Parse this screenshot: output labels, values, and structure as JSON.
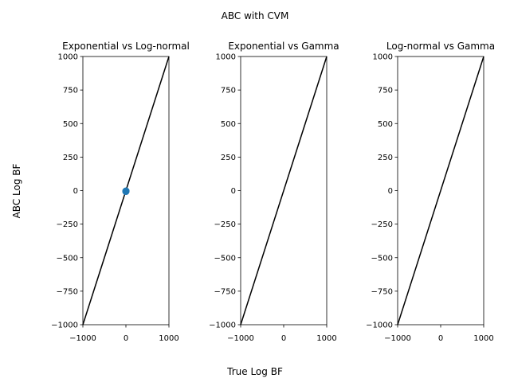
{
  "figure": {
    "title": "ABC with CVM",
    "xlabel": "True Log BF",
    "ylabel": "ABC Log BF"
  },
  "chart_data": [
    {
      "type": "scatter",
      "title": "Exponential vs Log-normal",
      "xlim": [
        -1000,
        1000
      ],
      "ylim": [
        -1000,
        1000
      ],
      "x_ticks": [
        "−1000",
        "0",
        "1000"
      ],
      "y_ticks": [
        "−1000",
        "−750",
        "−500",
        "−250",
        "0",
        "250",
        "500",
        "750",
        "1000"
      ],
      "reference_line": {
        "x": [
          -1000,
          1000
        ],
        "y": [
          -1000,
          1000
        ],
        "color": "#000000"
      },
      "series": [
        {
          "color": "#1f77b4",
          "points": [
            {
              "x": 0,
              "y": -5
            },
            {
              "x": 2,
              "y": -3
            },
            {
              "x": -1,
              "y": -6
            }
          ]
        }
      ],
      "grid": false
    },
    {
      "type": "scatter",
      "title": "Exponential vs Gamma",
      "xlim": [
        -1000,
        1000
      ],
      "ylim": [
        -1000,
        1000
      ],
      "x_ticks": [
        "−1000",
        "0",
        "1000"
      ],
      "y_ticks": [
        "−1000",
        "−750",
        "−500",
        "−250",
        "0",
        "250",
        "500",
        "750",
        "1000"
      ],
      "reference_line": {
        "x": [
          -1000,
          1000
        ],
        "y": [
          -1000,
          1000
        ],
        "color": "#000000"
      },
      "series": [],
      "grid": false
    },
    {
      "type": "scatter",
      "title": "Log-normal vs Gamma",
      "xlim": [
        -1000,
        1000
      ],
      "ylim": [
        -1000,
        1000
      ],
      "x_ticks": [
        "−1000",
        "0",
        "1000"
      ],
      "y_ticks": [
        "−1000",
        "−750",
        "−500",
        "−250",
        "0",
        "250",
        "500",
        "750",
        "1000"
      ],
      "reference_line": {
        "x": [
          -1000,
          1000
        ],
        "y": [
          -1000,
          1000
        ],
        "color": "#000000"
      },
      "series": [],
      "grid": false
    }
  ]
}
